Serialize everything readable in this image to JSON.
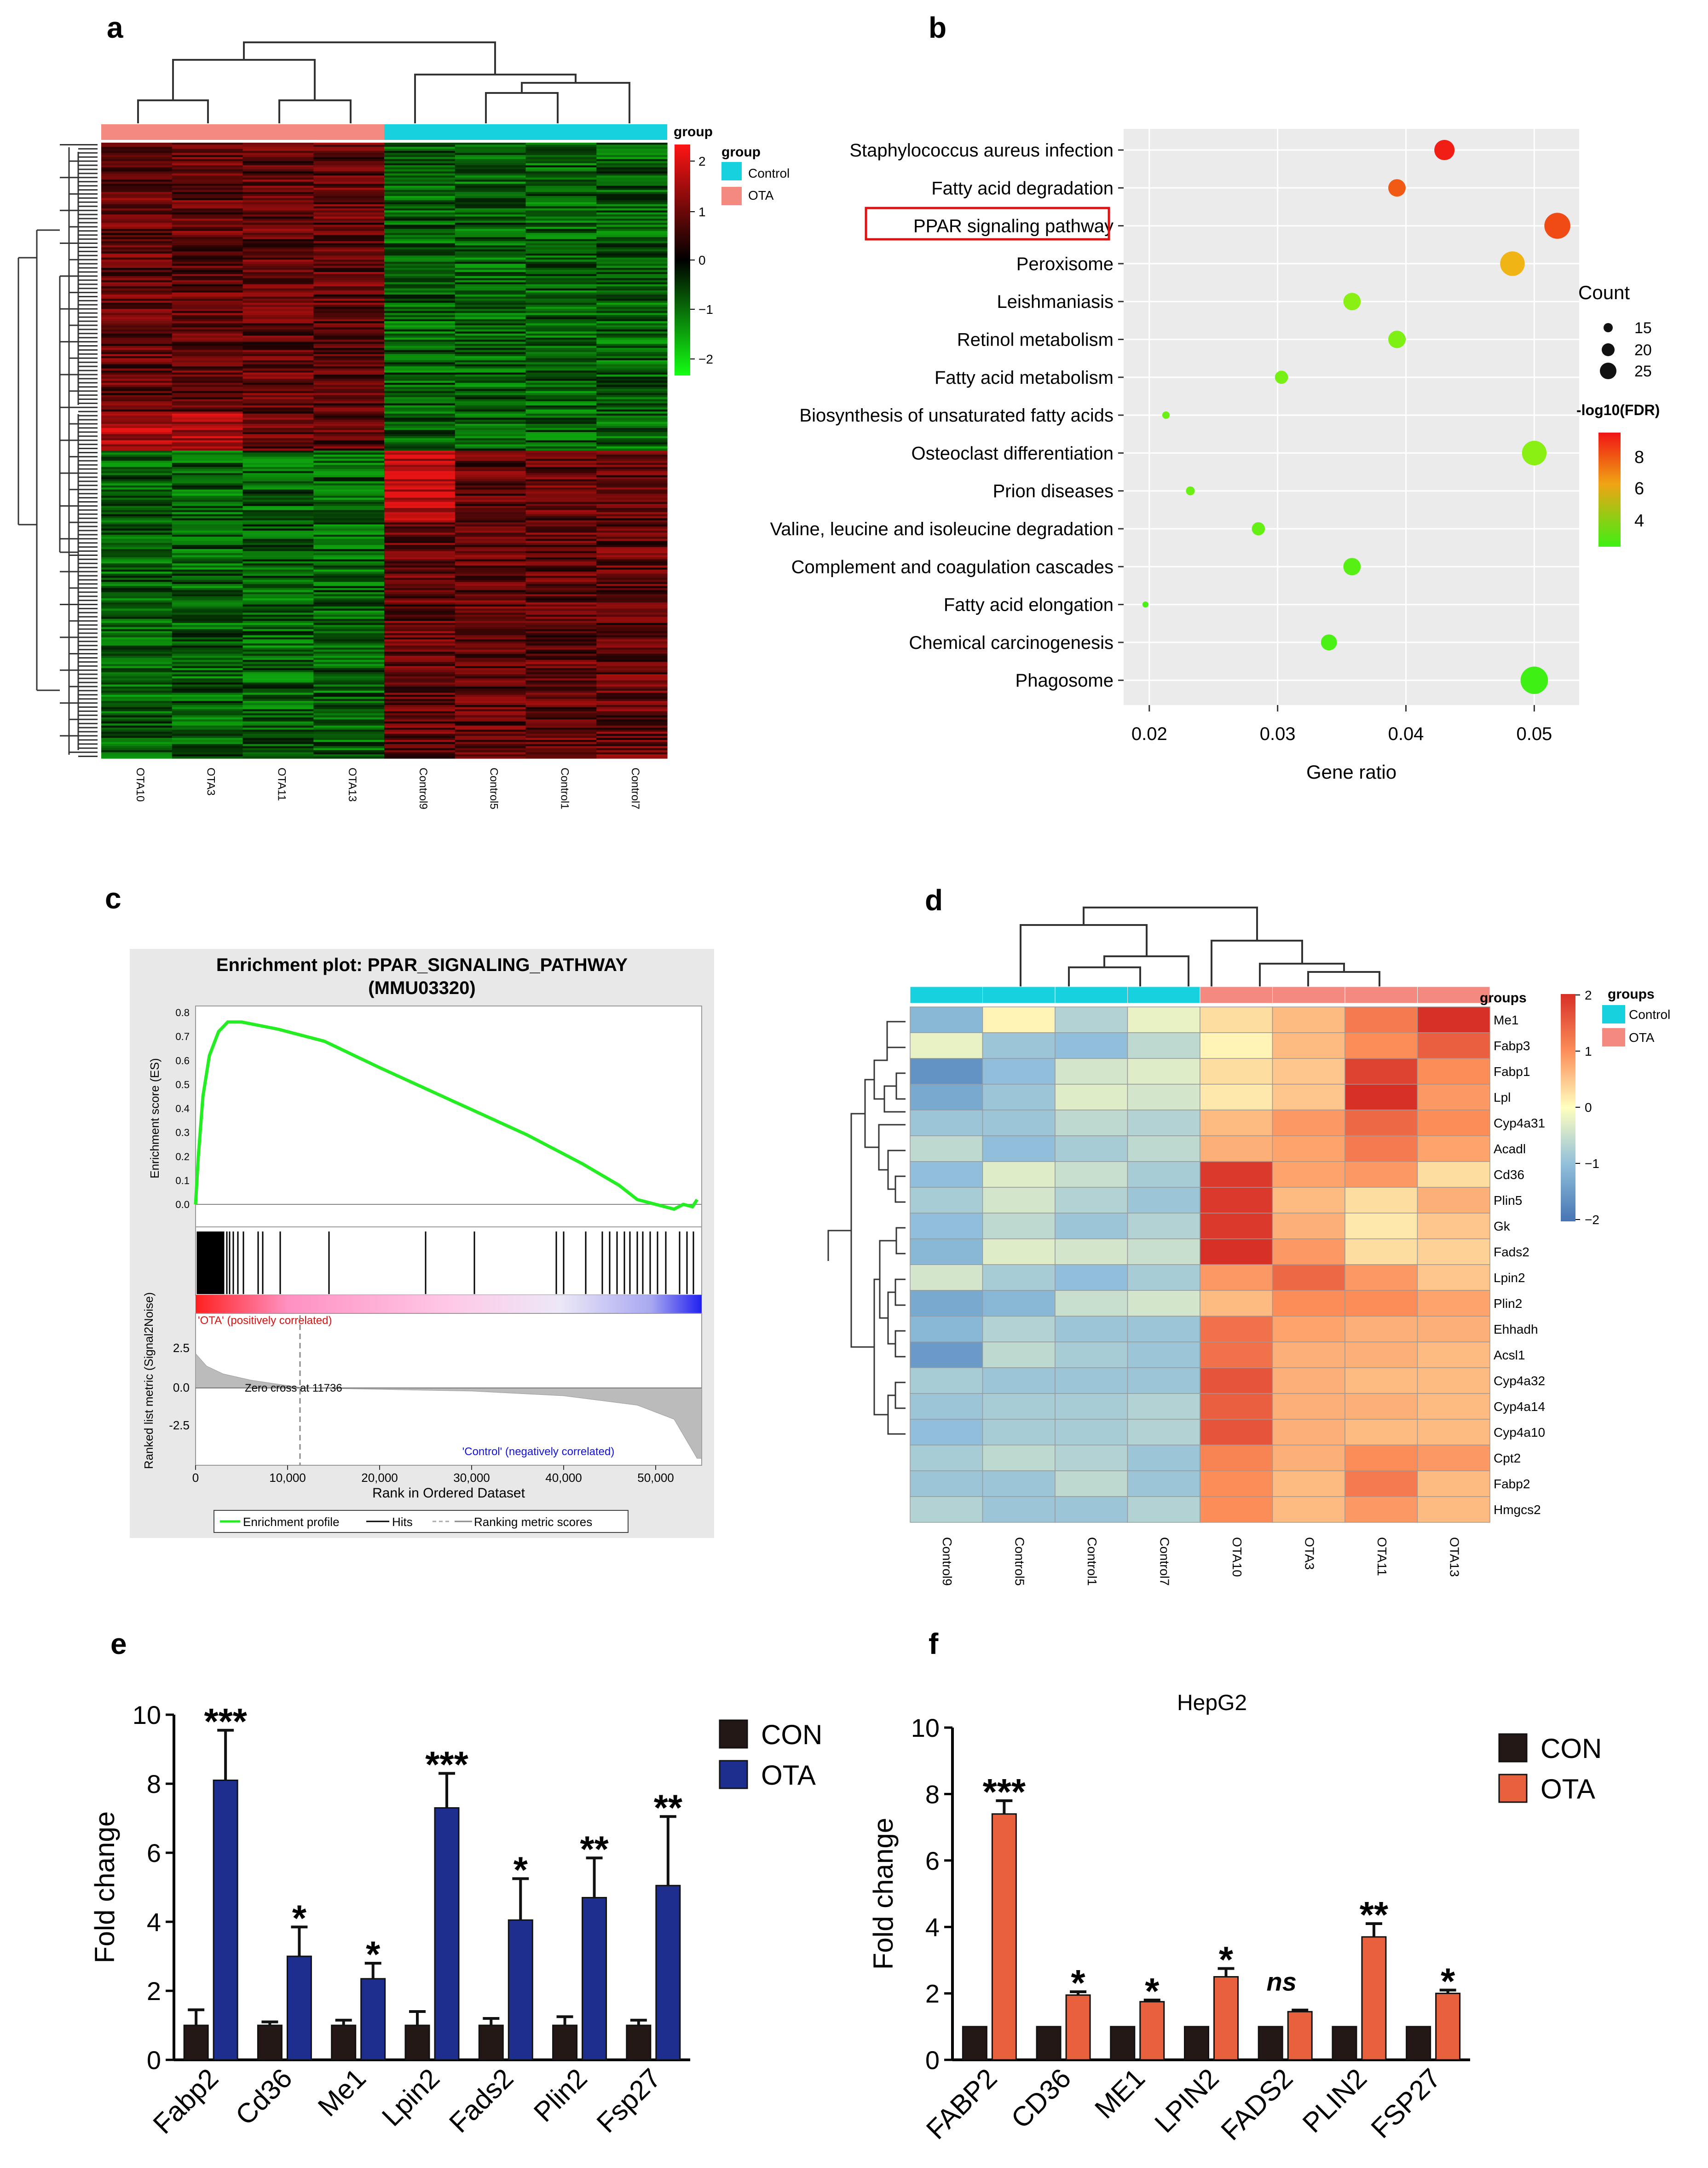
{
  "panels": {
    "a": {
      "letter": "a",
      "legend_bar_title": "group",
      "legend_title": "group",
      "legend_items": [
        {
          "label": "Control",
          "color": "#16d2df"
        },
        {
          "label": "OTA",
          "color": "#f4897f"
        }
      ],
      "scale_ticks": [
        "2",
        "1",
        "0",
        "−1",
        "−2"
      ],
      "samples": [
        "OTA10",
        "OTA3",
        "OTA11",
        "OTA13",
        "Control9",
        "Control5",
        "Control1",
        "Control7"
      ]
    },
    "b": {
      "letter": "b",
      "xlabel": "Gene ratio",
      "count_title": "Count",
      "count_items": [
        "15",
        "20",
        "25"
      ],
      "fdr_title": "-log10(FDR)",
      "fdr_ticks": [
        "8",
        "6",
        "4"
      ]
    },
    "c": {
      "letter": "c",
      "title_line1": "Enrichment plot: PPAR_SIGNALING_PATHWAY",
      "title_line2": "(MMU03320)",
      "es_label": "Enrichment score (ES)",
      "es_ticks": [
        "0.8",
        "0.7",
        "0.6",
        "0.5",
        "0.4",
        "0.3",
        "0.2",
        "0.1",
        "0.0"
      ],
      "metric_label": "Ranked list metric (Signal2Noise)",
      "metric_ticks": [
        "2.5",
        "0.0",
        "-2.5"
      ],
      "pos_label": "'OTA' (positively correlated)",
      "neg_label": "'Control' (negatively correlated)",
      "zero_cross": "Zero cross at 11736",
      "xlabel": "Rank in Ordered Dataset",
      "x_ticks": [
        "0",
        "10,000",
        "20,000",
        "30,000",
        "40,000",
        "50,000"
      ],
      "legend_items": [
        "Enrichment profile",
        "Hits",
        "Ranking metric scores"
      ]
    },
    "d": {
      "letter": "d",
      "groups_title": "groups",
      "legend_title": "groups",
      "legend_items": [
        {
          "label": "Control",
          "color": "#16d2df"
        },
        {
          "label": "OTA",
          "color": "#f4897f"
        }
      ],
      "scale_ticks": [
        "2",
        "1",
        "0",
        "−1",
        "−2"
      ]
    },
    "e": {
      "letter": "e"
    },
    "f": {
      "letter": "f",
      "title": "HepG2"
    }
  },
  "colors": {
    "control": "#16d2df",
    "ota": "#f4897f",
    "heat_red": "#e0191f",
    "heat_green": "#11e21d",
    "bar_con": "#231815",
    "bar_ota_e": "#1e2e8f",
    "bar_ota_f": "#e8603c",
    "gsea_line": "#22ee22"
  },
  "chart_data": [
    {
      "id": "b",
      "type": "scatter",
      "title": "",
      "xlabel": "Gene ratio",
      "ylabel": "",
      "xlim": [
        0.018,
        0.0535
      ],
      "x_ticks": [
        0.02,
        0.03,
        0.04,
        0.05
      ],
      "x_tick_labels": [
        "0.02",
        "0.03",
        "0.04",
        "0.05"
      ],
      "highlighted": "PPAR signaling pathway",
      "points": [
        {
          "term": "Staphylococcus aureus infection",
          "x": 0.043,
          "count": 21,
          "fdr": 9.0
        },
        {
          "term": "Fatty acid degradation",
          "x": 0.0393,
          "count": 19,
          "fdr": 8.2
        },
        {
          "term": "PPAR signaling pathway",
          "x": 0.0518,
          "count": 25,
          "fdr": 8.4
        },
        {
          "term": "Peroxisome",
          "x": 0.0483,
          "count": 24,
          "fdr": 7.0
        },
        {
          "term": "Leishmaniasis",
          "x": 0.0358,
          "count": 19,
          "fdr": 4.6
        },
        {
          "term": "Retinol metabolism",
          "x": 0.0393,
          "count": 19,
          "fdr": 4.4
        },
        {
          "term": "Fatty acid metabolism",
          "x": 0.0303,
          "count": 16,
          "fdr": 4.3
        },
        {
          "term": "Biosynthesis of unsaturated fatty acids",
          "x": 0.0213,
          "count": 12,
          "fdr": 4.1
        },
        {
          "term": "Osteoclast differentiation",
          "x": 0.05,
          "count": 24,
          "fdr": 4.6
        },
        {
          "term": "Prion diseases",
          "x": 0.0232,
          "count": 13,
          "fdr": 4.1
        },
        {
          "term": "Valine, leucine and isoleucine degradation",
          "x": 0.0285,
          "count": 16,
          "fdr": 4.0
        },
        {
          "term": "Complement and coagulation cascades",
          "x": 0.0358,
          "count": 19,
          "fdr": 3.8
        },
        {
          "term": "Fatty acid elongation",
          "x": 0.0197,
          "count": 11,
          "fdr": 3.6
        },
        {
          "term": "Chemical carcinogenesis",
          "x": 0.034,
          "count": 18,
          "fdr": 3.6
        },
        {
          "term": "Phagosome",
          "x": 0.05,
          "count": 26,
          "fdr": 3.4
        }
      ]
    },
    {
      "id": "d",
      "type": "heatmap",
      "columns": [
        "Control9",
        "Control5",
        "Control1",
        "Control7",
        "OTA10",
        "OTA3",
        "OTA11",
        "OTA13"
      ],
      "column_groups": [
        "Control",
        "Control",
        "Control",
        "Control",
        "OTA",
        "OTA",
        "OTA",
        "OTA"
      ],
      "rows": [
        "Me1",
        "Fabp3",
        "Fabp1",
        "Lpl",
        "Cyp4a31",
        "Acadl",
        "Cd36",
        "Plin5",
        "Gk",
        "Fads2",
        "Lpin2",
        "Plin2",
        "Ehhadh",
        "Acsl1",
        "Cyp4a32",
        "Cyp4a14",
        "Cyp4a10",
        "Cpt2",
        "Fabp2",
        "Hmgcs2"
      ],
      "values": [
        [
          -1.1,
          0.1,
          -0.7,
          -0.2,
          0.3,
          0.6,
          1.2,
          2.0
        ],
        [
          -0.2,
          -0.9,
          -1.0,
          -0.6,
          0.1,
          0.6,
          1.0,
          1.5
        ],
        [
          -1.6,
          -1.0,
          -0.4,
          -0.3,
          0.3,
          0.5,
          1.8,
          1.0
        ],
        [
          -1.3,
          -0.9,
          -0.3,
          -0.4,
          0.2,
          0.5,
          2.0,
          0.9
        ],
        [
          -0.9,
          -0.9,
          -0.6,
          -0.7,
          0.6,
          0.9,
          1.4,
          1.0
        ],
        [
          -0.6,
          -1.0,
          -0.8,
          -0.6,
          0.7,
          0.8,
          1.2,
          0.8
        ],
        [
          -1.0,
          -0.3,
          -0.5,
          -0.8,
          1.9,
          0.8,
          0.9,
          0.3
        ],
        [
          -0.8,
          -0.4,
          -0.7,
          -0.9,
          1.9,
          0.6,
          0.3,
          0.7
        ],
        [
          -1.0,
          -0.6,
          -0.9,
          -0.7,
          1.9,
          0.7,
          0.2,
          0.5
        ],
        [
          -1.1,
          -0.3,
          -0.4,
          -0.5,
          2.0,
          0.9,
          0.3,
          0.4
        ],
        [
          -0.4,
          -0.8,
          -1.0,
          -0.8,
          0.9,
          1.4,
          0.9,
          0.5
        ],
        [
          -1.3,
          -1.1,
          -0.5,
          -0.4,
          0.6,
          1.0,
          1.0,
          0.8
        ],
        [
          -1.1,
          -0.7,
          -0.9,
          -0.9,
          1.3,
          0.8,
          0.7,
          0.7
        ],
        [
          -1.5,
          -0.6,
          -0.8,
          -0.9,
          1.3,
          0.7,
          0.7,
          0.6
        ],
        [
          -0.8,
          -0.9,
          -0.9,
          -0.9,
          1.6,
          0.7,
          0.6,
          0.6
        ],
        [
          -0.9,
          -0.8,
          -0.8,
          -0.7,
          1.5,
          0.7,
          0.7,
          0.6
        ],
        [
          -1.0,
          -0.8,
          -0.8,
          -0.7,
          1.6,
          0.7,
          0.6,
          0.6
        ],
        [
          -0.8,
          -0.6,
          -0.7,
          -0.9,
          1.1,
          0.7,
          1.0,
          0.9
        ],
        [
          -0.9,
          -0.9,
          -0.6,
          -0.9,
          1.0,
          0.6,
          1.2,
          0.6
        ],
        [
          -0.7,
          -0.9,
          -0.9,
          -0.7,
          1.0,
          0.6,
          0.9,
          0.6
        ]
      ],
      "scale": [
        -2,
        2
      ]
    },
    {
      "id": "e",
      "type": "bar",
      "title": "",
      "xlabel": "",
      "ylabel": "Fold change",
      "ylim": [
        0,
        10
      ],
      "y_ticks": [
        "0",
        "2",
        "4",
        "6",
        "8",
        "10"
      ],
      "categories": [
        "Fabp2",
        "Cd36",
        "Me1",
        "Lpin2",
        "Fads2",
        "Plin2",
        "Fsp27"
      ],
      "series": [
        {
          "name": "CON",
          "values": [
            1.0,
            1.0,
            1.0,
            1.0,
            1.0,
            1.0,
            1.0
          ],
          "errors": [
            0.45,
            0.1,
            0.15,
            0.4,
            0.2,
            0.25,
            0.15
          ]
        },
        {
          "name": "OTA",
          "values": [
            8.1,
            3.0,
            2.35,
            7.3,
            4.05,
            4.7,
            5.05
          ],
          "errors": [
            1.45,
            0.85,
            0.45,
            1.0,
            1.2,
            1.15,
            2.0
          ]
        }
      ],
      "significance": [
        "***",
        "*",
        "*",
        "***",
        "*",
        "**",
        "**"
      ]
    },
    {
      "id": "f",
      "type": "bar",
      "title": "HepG2",
      "xlabel": "",
      "ylabel": "Fold change",
      "ylim": [
        0,
        10
      ],
      "y_ticks": [
        "0",
        "2",
        "4",
        "6",
        "8",
        "10"
      ],
      "categories": [
        "FABP2",
        "CD36",
        "ME1",
        "LPIN2",
        "FADS2",
        "PLIN2",
        "FSP27"
      ],
      "series": [
        {
          "name": "CON",
          "values": [
            1.0,
            1.0,
            1.0,
            1.0,
            1.0,
            1.0,
            1.0
          ],
          "errors": [
            0,
            0,
            0,
            0,
            0,
            0,
            0
          ]
        },
        {
          "name": "OTA",
          "values": [
            7.4,
            1.95,
            1.75,
            2.5,
            1.45,
            3.7,
            2.0
          ],
          "errors": [
            0.4,
            0.1,
            0.05,
            0.25,
            0.05,
            0.4,
            0.1
          ]
        }
      ],
      "significance": [
        "***",
        "*",
        "*",
        "*",
        "ns",
        "**",
        "*"
      ]
    }
  ]
}
